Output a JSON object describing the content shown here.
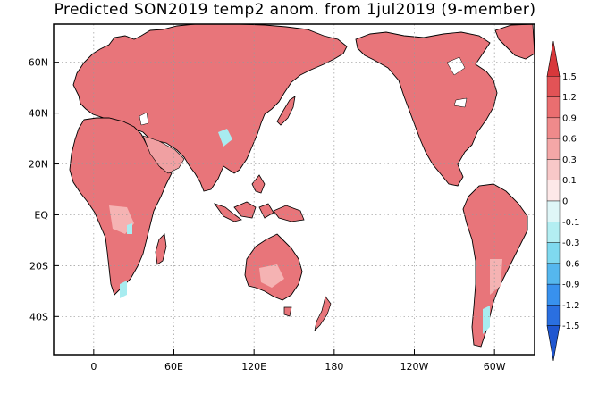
{
  "title": "Predicted SON2019 temp2 anom. from 1jul2019 (9-member)",
  "map": {
    "lon_ticks": [
      "0",
      "60E",
      "120E",
      "180",
      "120W",
      "60W"
    ],
    "lat_ticks": [
      "60N",
      "40N",
      "20N",
      "EQ",
      "20S",
      "40S"
    ],
    "lon_values": [
      0,
      60,
      120,
      180,
      240,
      300
    ],
    "lat_values": [
      60,
      40,
      20,
      0,
      -20,
      -40
    ],
    "lon_range": [
      -30,
      330
    ],
    "lat_range": [
      -55,
      75
    ],
    "land_color": "#e8757a",
    "land_pale": "#f5b3b3",
    "cold_color": "#a8ecf0",
    "grid": true
  },
  "colorbar": {
    "labels": [
      "1.5",
      "1.2",
      "0.9",
      "0.6",
      "0.3",
      "0.1",
      "0",
      "-0.1",
      "-0.3",
      "-0.6",
      "-0.9",
      "-1.2",
      "-1.5"
    ],
    "colors": [
      "#d8383b",
      "#e25356",
      "#ea6e70",
      "#ef8a8b",
      "#f4a7a7",
      "#f8c8c8",
      "#fde8e8",
      "#dff6f7",
      "#b3eef2",
      "#7fd9ef",
      "#55b7ee",
      "#3891ee",
      "#2a6fe0",
      "#1f56d0"
    ]
  }
}
